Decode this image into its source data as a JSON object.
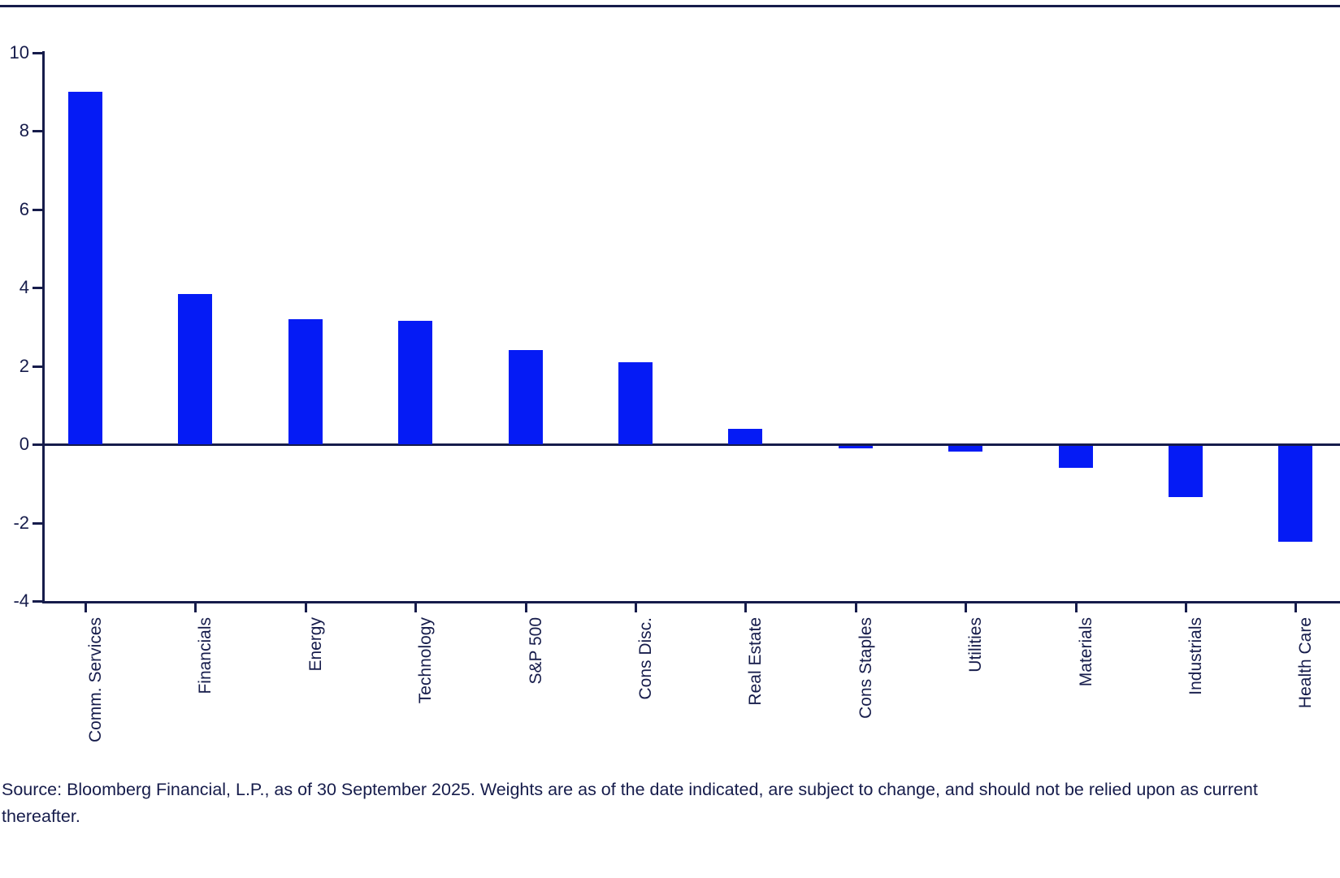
{
  "chart_data": {
    "type": "bar",
    "title": "",
    "xlabel": "",
    "ylabel": "",
    "categories": [
      "Comm. Services",
      "Financials",
      "Energy",
      "Technology",
      "S&P 500",
      "Cons Disc.",
      "Real Estate",
      "Cons Staples",
      "Utilities",
      "Materials",
      "Industrials",
      "Health Care"
    ],
    "values": [
      9.0,
      3.85,
      3.2,
      3.15,
      2.4,
      2.1,
      0.4,
      -0.05,
      -0.15,
      -0.55,
      -1.3,
      -2.45
    ],
    "ylim": [
      -4,
      10
    ],
    "yticks": [
      10,
      8,
      6,
      4,
      2,
      0,
      -2,
      -4
    ],
    "grid": false,
    "zero_line": true,
    "legend": "none",
    "bar_color": "#051BF5",
    "axis_color": "#161C4B"
  },
  "source": {
    "text": "Source: Bloomberg Financial, L.P., as of 30 September 2025. Weights are as of the date indicated, are subject to change, and should not be relied upon as current thereafter."
  }
}
